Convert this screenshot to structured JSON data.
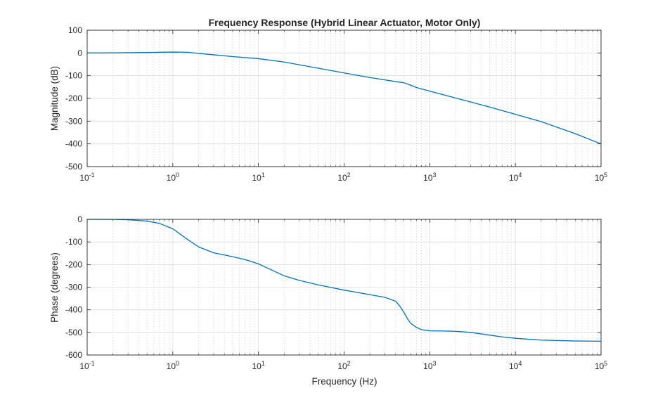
{
  "chart_data": [
    {
      "type": "line",
      "title": "Frequency Response (Hybrid Linear Actuator, Motor Only)",
      "xlabel": "",
      "ylabel": "Magnitude (dB)",
      "xscale": "log",
      "xlim": [
        0.1,
        100000
      ],
      "ylim": [
        -500,
        100
      ],
      "yticks": [
        "100",
        "0",
        "-100",
        "-200",
        "-300",
        "-400",
        "-500"
      ],
      "xticks": [
        {
          "base": "10",
          "exp": "-1"
        },
        {
          "base": "10",
          "exp": "0"
        },
        {
          "base": "10",
          "exp": "1"
        },
        {
          "base": "10",
          "exp": "2"
        },
        {
          "base": "10",
          "exp": "3"
        },
        {
          "base": "10",
          "exp": "4"
        },
        {
          "base": "10",
          "exp": "5"
        }
      ],
      "grid": true,
      "series": [
        {
          "color": "#0072bd",
          "x": [
            0.1,
            0.2,
            0.5,
            1,
            1.5,
            2,
            3,
            5,
            10,
            20,
            50,
            100,
            200,
            400,
            500,
            600,
            700,
            1000,
            2000,
            5000,
            10000,
            20000,
            50000,
            100000
          ],
          "y": [
            0,
            0.5,
            2,
            4,
            3,
            -2,
            -8,
            -16,
            -25,
            -40,
            -67,
            -88,
            -108,
            -126,
            -131,
            -142,
            -152,
            -168,
            -198,
            -238,
            -270,
            -302,
            -355,
            -400
          ]
        }
      ]
    },
    {
      "type": "line",
      "title": "",
      "xlabel": "Frequency (Hz)",
      "ylabel": "Phase (degrees)",
      "xscale": "log",
      "xlim": [
        0.1,
        100000
      ],
      "ylim": [
        -600,
        0
      ],
      "yticks": [
        "0",
        "-100",
        "-200",
        "-300",
        "-400",
        "-500",
        "-600"
      ],
      "xticks": [
        {
          "base": "10",
          "exp": "-1"
        },
        {
          "base": "10",
          "exp": "0"
        },
        {
          "base": "10",
          "exp": "1"
        },
        {
          "base": "10",
          "exp": "2"
        },
        {
          "base": "10",
          "exp": "3"
        },
        {
          "base": "10",
          "exp": "4"
        },
        {
          "base": "10",
          "exp": "5"
        }
      ],
      "grid": true,
      "series": [
        {
          "color": "#0072bd",
          "x": [
            0.1,
            0.2,
            0.3,
            0.5,
            0.7,
            1,
            1.5,
            2,
            3,
            5,
            7,
            10,
            15,
            20,
            30,
            50,
            100,
            200,
            300,
            400,
            450,
            500,
            550,
            600,
            700,
            800,
            1000,
            1500,
            2000,
            3000,
            5000,
            7000,
            10000,
            20000,
            50000,
            100000
          ],
          "y": [
            0,
            -0.5,
            -2,
            -8,
            -18,
            -42,
            -90,
            -122,
            -148,
            -165,
            -178,
            -197,
            -228,
            -250,
            -270,
            -290,
            -313,
            -333,
            -345,
            -362,
            -385,
            -412,
            -440,
            -460,
            -478,
            -488,
            -493,
            -494,
            -495,
            -500,
            -512,
            -520,
            -526,
            -534,
            -538,
            -539
          ]
        }
      ]
    }
  ]
}
